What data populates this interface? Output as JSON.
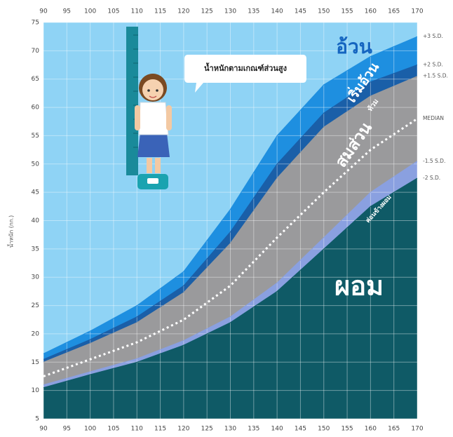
{
  "chart_data": {
    "type": "area",
    "y_label": "น้ำหนัก (กก.)",
    "x": [
      90,
      100,
      110,
      120,
      130,
      140,
      150,
      160,
      170
    ],
    "xlim": [
      90,
      170
    ],
    "xticks": [
      90,
      95,
      100,
      105,
      110,
      115,
      120,
      125,
      130,
      135,
      140,
      145,
      150,
      155,
      160,
      165,
      170
    ],
    "ylim": [
      5,
      75
    ],
    "yticks": [
      5,
      10,
      15,
      20,
      25,
      30,
      35,
      40,
      45,
      50,
      55,
      60,
      65,
      70,
      75
    ],
    "grid": true,
    "background": "#8fd3f5",
    "series": [
      {
        "name": "+3 S.D.",
        "color": "#1e8fe0",
        "style": "fill",
        "values": [
          16.5,
          20.5,
          25,
          31,
          42,
          55,
          64,
          69,
          72.5
        ]
      },
      {
        "name": "+2 S.D.",
        "color": "#1a5fa8",
        "style": "fill",
        "values": [
          15.5,
          19,
          23,
          28.5,
          38,
          50,
          59,
          64.5,
          67.5
        ]
      },
      {
        "name": "+1.5 S.D.",
        "color": "#9a9a9c",
        "style": "fill",
        "values": [
          15,
          18.3,
          22,
          27.3,
          36,
          47.5,
          56.5,
          62,
          65.5
        ]
      },
      {
        "name": "MEDIAN",
        "color": "#ffffff",
        "style": "dotted",
        "values": [
          12.5,
          15.5,
          18.5,
          22.5,
          28.5,
          37,
          45,
          52.5,
          58
        ]
      },
      {
        "name": "-1.5 S.D.",
        "color": "#8aa0e0",
        "style": "fill",
        "values": [
          11,
          13.3,
          15.6,
          18.8,
          23,
          29,
          37,
          45,
          50.5
        ]
      },
      {
        "name": "-2 S.D.",
        "color": "#0f5a66",
        "style": "fill",
        "values": [
          10.5,
          12.8,
          15,
          18,
          22,
          27.5,
          35,
          42.5,
          47.5
        ]
      }
    ],
    "zone_labels": [
      "อ้วน",
      "เริ่มอ้วน",
      "ท้วม",
      "สมส่วน",
      "ค่อนข้างผอม",
      "ผอม"
    ],
    "bubble": "น้ำหนักตามเกณฑ์ส่วนสูง"
  }
}
